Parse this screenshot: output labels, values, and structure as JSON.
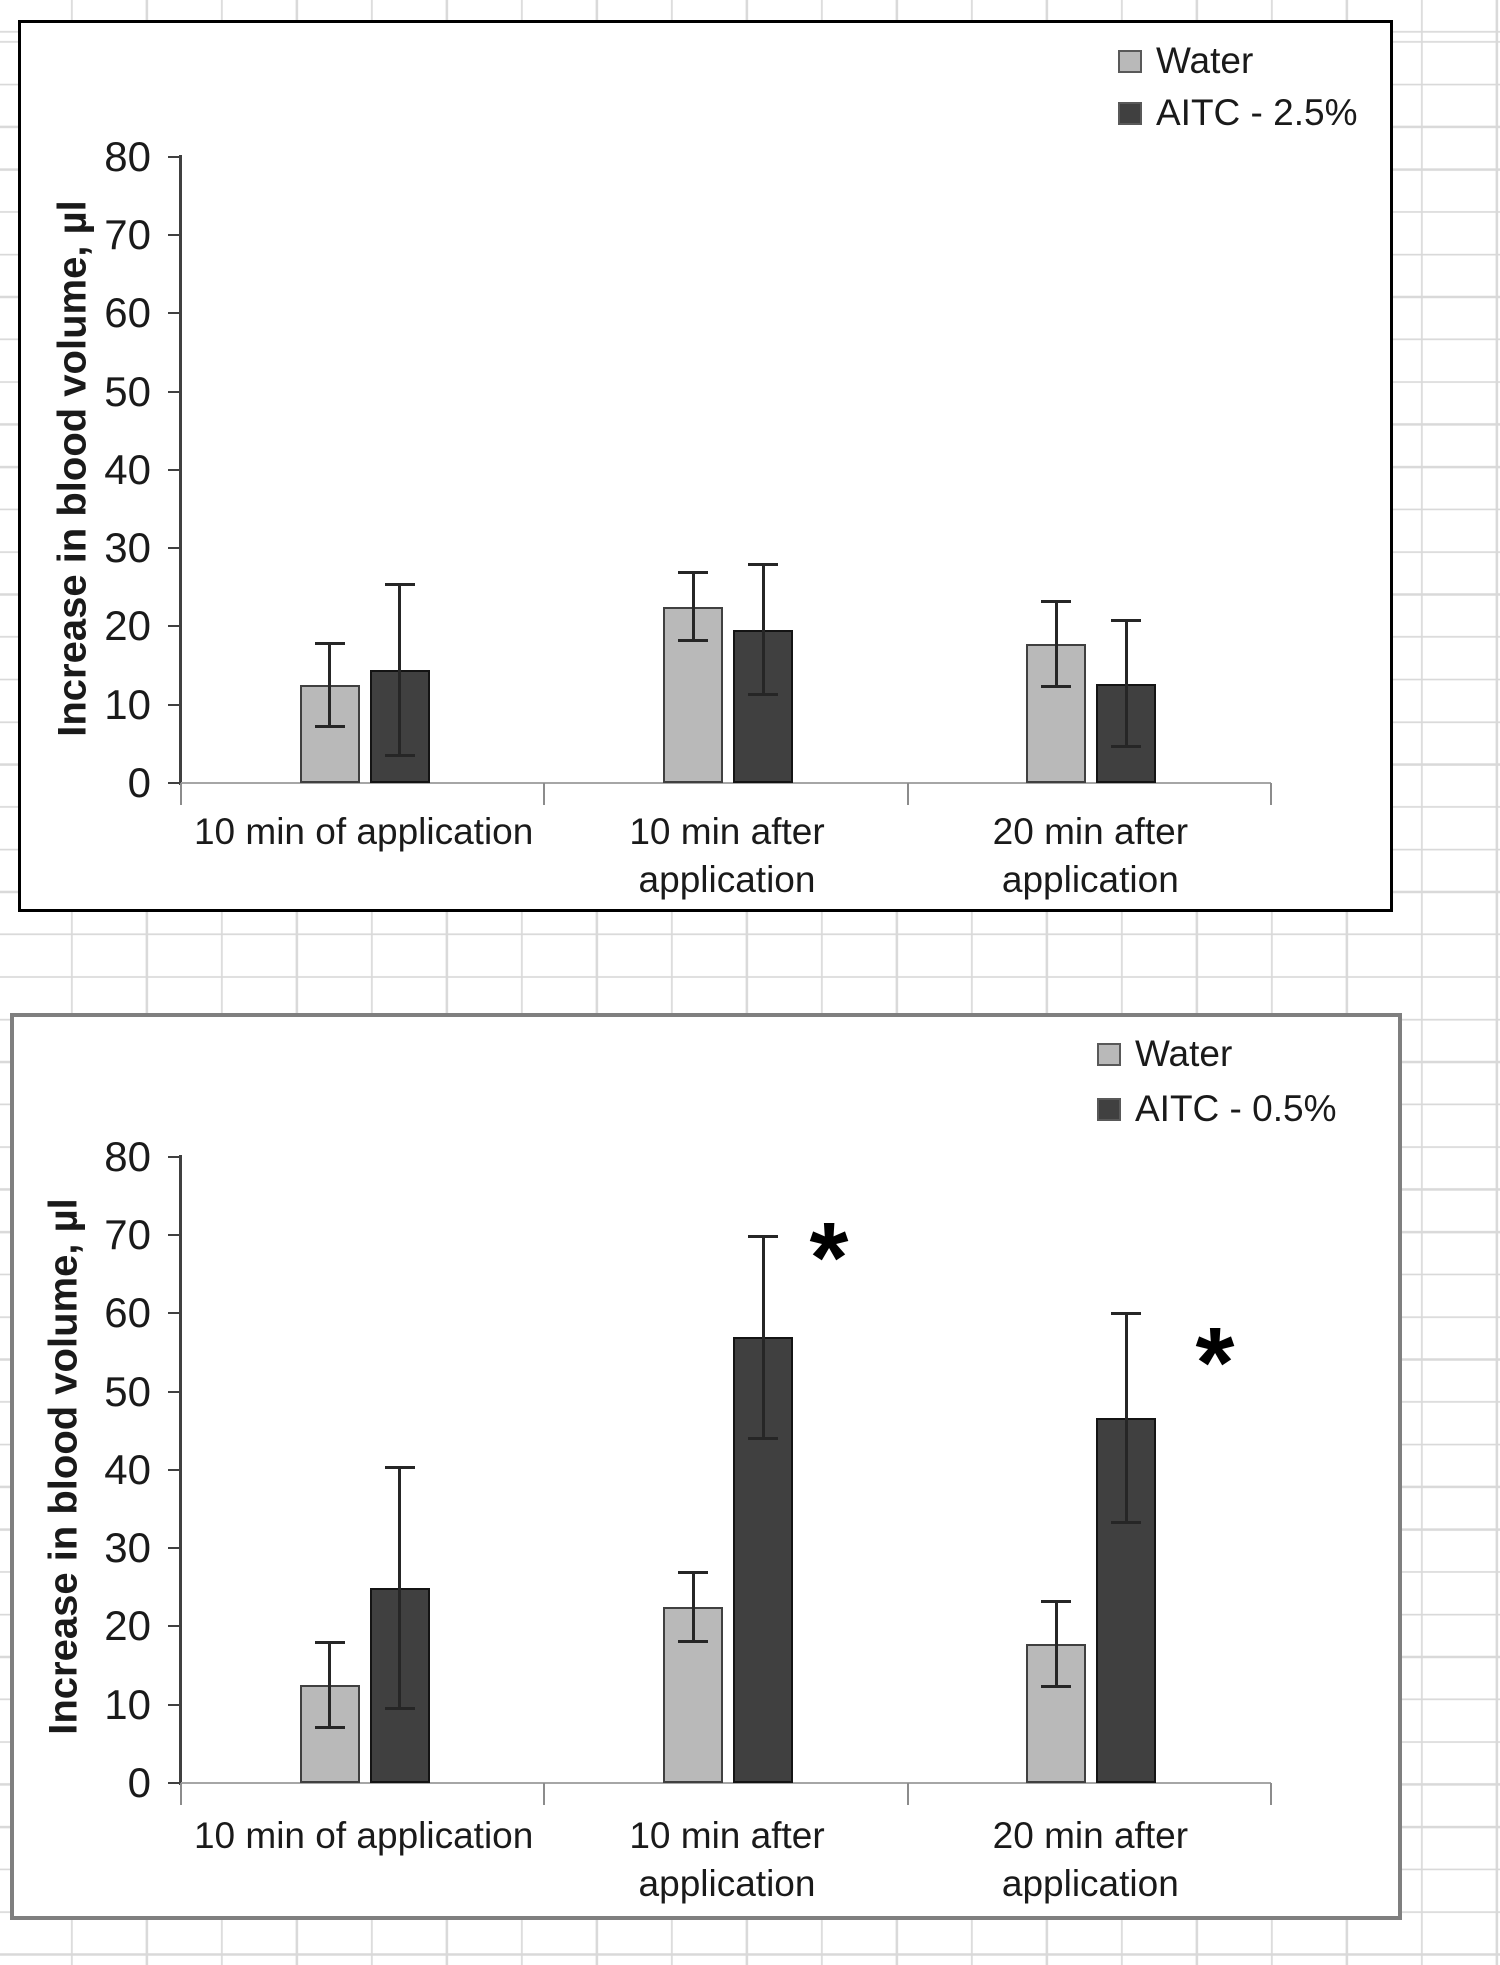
{
  "page": {
    "background": "#ffffff",
    "gridline_color": "#d9d9d9",
    "description": "Two Excel-style grouped bar charts with error bars on a spreadsheet grid background",
    "chart_border_colors": [
      "#000000",
      "#7f7f7f"
    ]
  },
  "chart_data": [
    {
      "type": "bar",
      "title": "",
      "xlabel": "",
      "ylabel": "Increase in blood volume, µl",
      "ylim": [
        0,
        80
      ],
      "ytick_step": 10,
      "grid": false,
      "legend_position": "top-right",
      "legend": [
        "Water",
        "AITC - 2.5%"
      ],
      "categories": [
        "10 min of application",
        "10 min after application",
        "20 min after application"
      ],
      "category_label_lines": [
        [
          "10 min of application"
        ],
        [
          "10 min after",
          "application"
        ],
        [
          "20 min after",
          "application"
        ]
      ],
      "series": [
        {
          "name": "Water",
          "fill": "#b9b9b9",
          "border": "#404040",
          "values": [
            12.5,
            22.5,
            17.8
          ],
          "error": [
            5.4,
            4.4,
            5.5
          ]
        },
        {
          "name": "AITC - 2.5%",
          "fill": "#404040",
          "border": "#141414",
          "values": [
            14.4,
            19.6,
            12.7
          ],
          "error": [
            11.0,
            8.4,
            8.1
          ]
        }
      ],
      "annotations": []
    },
    {
      "type": "bar",
      "title": "",
      "xlabel": "",
      "ylabel": "Increase in blood volume, µl",
      "ylim": [
        0,
        80
      ],
      "ytick_step": 10,
      "grid": false,
      "legend_position": "top-right",
      "legend": [
        "Water",
        "AITC - 0.5%"
      ],
      "categories": [
        "10 min of application",
        "10 min after application",
        "20 min after application"
      ],
      "category_label_lines": [
        [
          "10 min of application"
        ],
        [
          "10 min after",
          "application"
        ],
        [
          "20 min after",
          "application"
        ]
      ],
      "series": [
        {
          "name": "Water",
          "fill": "#b9b9b9",
          "border": "#404040",
          "values": [
            12.5,
            22.5,
            17.8
          ],
          "error": [
            5.5,
            4.5,
            5.5
          ]
        },
        {
          "name": "AITC - 0.5%",
          "fill": "#404040",
          "border": "#141414",
          "values": [
            24.9,
            56.9,
            46.6
          ],
          "error": [
            15.5,
            13.0,
            13.4
          ]
        }
      ],
      "annotations": [
        {
          "symbol": "*",
          "series": "AITC - 0.5%",
          "category": "10 min after application"
        },
        {
          "symbol": "*",
          "series": "AITC - 0.5%",
          "category": "20 min after application"
        }
      ]
    }
  ]
}
